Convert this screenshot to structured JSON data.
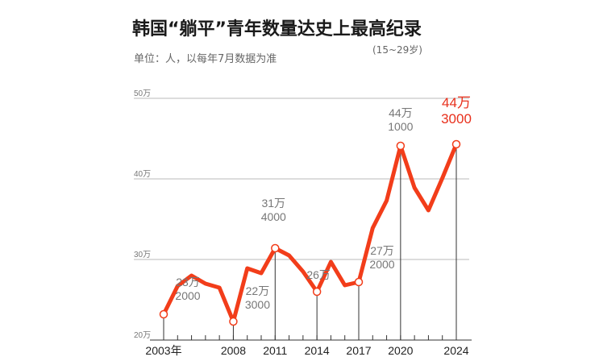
{
  "title": "韩国“躺平”青年数量达史上最高纪录",
  "unit_note": "单位：人，以每年7月数据为准",
  "age_range": "(15~29岁)",
  "colors": {
    "line": "#f23d1a",
    "highlight": "#e8301c",
    "grid": "#bbbbbb",
    "label": "#777777"
  },
  "chart_data": {
    "type": "line",
    "title": "韩国“躺平”青年数量达史上最高纪录",
    "ylabel": "单位：人，以每年7月数据为准",
    "xlabel": "",
    "ylim": [
      200000,
      500000
    ],
    "y_ticks": [
      {
        "value": 200000,
        "label": "20万"
      },
      {
        "value": 300000,
        "label": "30万"
      },
      {
        "value": 400000,
        "label": "40万"
      },
      {
        "value": 500000,
        "label": "50万"
      }
    ],
    "x_ticks": [
      {
        "year": 2003,
        "label": "2003年"
      },
      {
        "year": 2008,
        "label": "2008"
      },
      {
        "year": 2011,
        "label": "2011"
      },
      {
        "year": 2014,
        "label": "2014"
      },
      {
        "year": 2017,
        "label": "2017"
      },
      {
        "year": 2020,
        "label": "2020"
      },
      {
        "year": 2024,
        "label": "2024"
      }
    ],
    "x": [
      2003,
      2004,
      2005,
      2006,
      2007,
      2008,
      2009,
      2010,
      2011,
      2012,
      2013,
      2014,
      2015,
      2016,
      2017,
      2018,
      2019,
      2020,
      2021,
      2022,
      2023,
      2024
    ],
    "values": [
      232000,
      267000,
      280000,
      270000,
      265000,
      223000,
      289000,
      283000,
      314000,
      305000,
      285000,
      260000,
      297000,
      268000,
      272000,
      339000,
      373000,
      441000,
      389000,
      361000,
      401000,
      443000
    ],
    "annotations": [
      {
        "year": 2003,
        "value": 232000,
        "lines": [
          "23万",
          "2000"
        ]
      },
      {
        "year": 2008,
        "value": 223000,
        "lines": [
          "22万",
          "3000"
        ]
      },
      {
        "year": 2011,
        "value": 314000,
        "lines": [
          "31万",
          "4000"
        ]
      },
      {
        "year": 2014,
        "value": 260000,
        "lines": [
          "26万"
        ]
      },
      {
        "year": 2017,
        "value": 272000,
        "lines": [
          "27万",
          "2000"
        ]
      },
      {
        "year": 2020,
        "value": 441000,
        "lines": [
          "44万",
          "1000"
        ]
      },
      {
        "year": 2024,
        "value": 443000,
        "lines": [
          "44万",
          "3000"
        ],
        "highlight": true
      }
    ]
  }
}
